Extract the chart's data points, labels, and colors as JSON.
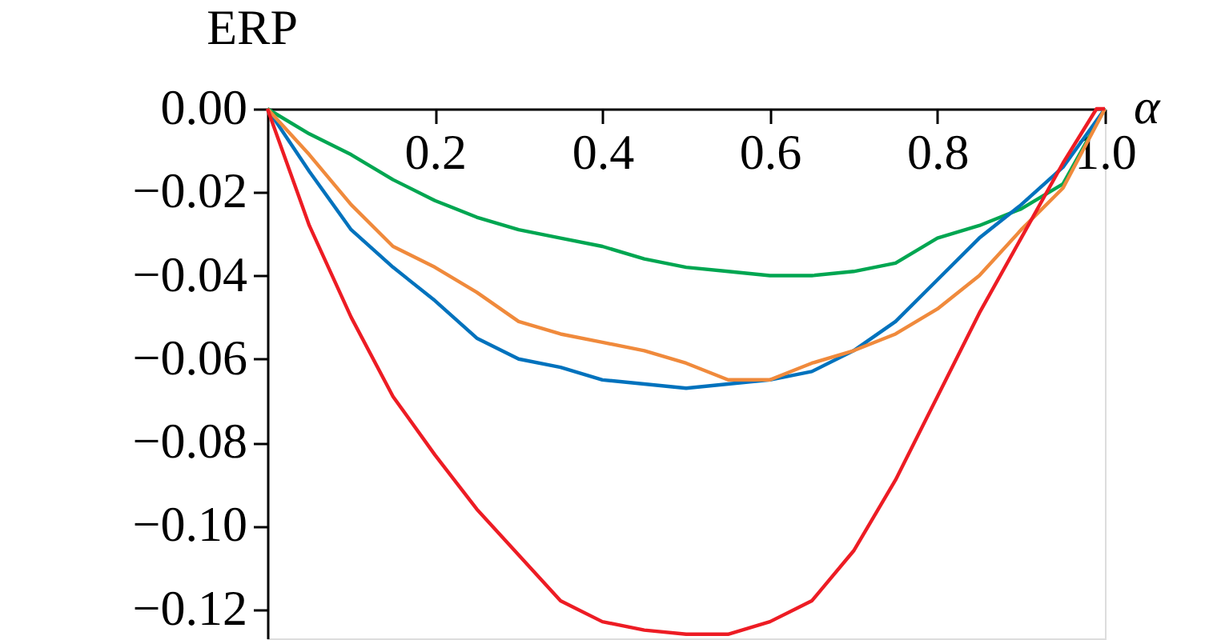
{
  "chart_data": {
    "type": "line",
    "xlabel": "α",
    "ylabel": "ERP",
    "xlim": [
      0,
      1.0
    ],
    "ylim": [
      -0.127,
      0
    ],
    "xticks": [
      0.2,
      0.4,
      0.6,
      0.8,
      {
        "value": 1.0,
        "label": "1.0"
      }
    ],
    "yticks": [
      {
        "value": 0,
        "label": "0.00"
      },
      -0.02,
      -0.04,
      -0.06,
      -0.08,
      {
        "value": -0.1,
        "label": "−0.10"
      },
      -0.12
    ],
    "grid": false,
    "x": [
      0,
      0.05,
      0.1,
      0.15,
      0.2,
      0.25,
      0.3,
      0.35,
      0.4,
      0.45,
      0.5,
      0.55,
      0.6,
      0.65,
      0.7,
      0.75,
      0.8,
      0.85,
      0.9,
      0.95,
      1.0
    ],
    "series": [
      {
        "color": "#00a651",
        "values": [
          0,
          -0.006,
          -0.011,
          -0.017,
          -0.022,
          -0.026,
          -0.029,
          -0.031,
          -0.033,
          -0.036,
          -0.038,
          -0.039,
          -0.04,
          -0.04,
          -0.039,
          -0.037,
          -0.031,
          -0.028,
          -0.024,
          -0.018,
          0
        ]
      },
      {
        "color": "#0072bd",
        "values": [
          0,
          -0.015,
          -0.029,
          -0.038,
          -0.046,
          -0.055,
          -0.06,
          -0.062,
          -0.065,
          -0.066,
          -0.067,
          -0.066,
          -0.065,
          -0.063,
          -0.058,
          -0.051,
          -0.041,
          -0.031,
          -0.023,
          -0.014,
          0
        ]
      },
      {
        "color": "#f08a3c",
        "values": [
          0,
          -0.011,
          -0.023,
          -0.033,
          -0.038,
          -0.044,
          -0.051,
          -0.054,
          -0.056,
          -0.058,
          -0.061,
          -0.065,
          -0.065,
          -0.061,
          -0.058,
          -0.054,
          -0.048,
          -0.04,
          -0.029,
          -0.019,
          0
        ]
      },
      {
        "color": "#ed1c24",
        "x": [
          0,
          0.05,
          0.1,
          0.15,
          0.2,
          0.25,
          0.3,
          0.35,
          0.4,
          0.45,
          0.5,
          0.55,
          0.6,
          0.65,
          0.7,
          0.75,
          0.8,
          0.85,
          0.9,
          0.95,
          0.99,
          1.0
        ],
        "values": [
          0,
          -0.028,
          -0.05,
          -0.069,
          -0.083,
          -0.096,
          -0.107,
          -0.118,
          -0.123,
          -0.125,
          -0.126,
          -0.126,
          -0.123,
          -0.118,
          -0.106,
          -0.089,
          -0.069,
          -0.049,
          -0.031,
          -0.013,
          0,
          0
        ]
      }
    ]
  }
}
